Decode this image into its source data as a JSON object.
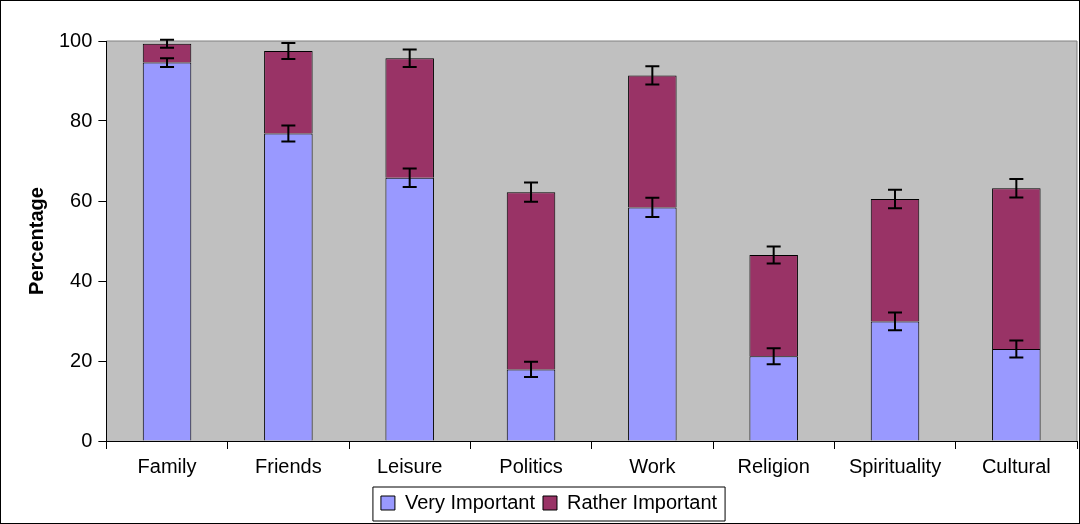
{
  "chart_data": {
    "type": "bar",
    "ylabel": "Percentage",
    "stacked": true,
    "categories": [
      "Family",
      "Friends",
      "Leisure",
      "Politics",
      "Work",
      "Religion",
      "Spirituality",
      "Cultural"
    ],
    "series": [
      {
        "name": "Very Important",
        "color": "#9999ff",
        "values": [
          94.6,
          76.9,
          65.8,
          17.9,
          58.4,
          21.2,
          29.9,
          23.0
        ],
        "errors": [
          1.1,
          2.0,
          2.3,
          1.9,
          2.4,
          2.0,
          2.2,
          2.1
        ]
      },
      {
        "name": "Rather Important",
        "color": "#993366",
        "values": [
          4.7,
          20.6,
          29.9,
          44.3,
          33.0,
          25.3,
          30.6,
          40.2
        ],
        "errors": [
          1.0,
          2.0,
          2.2,
          2.4,
          2.3,
          2.1,
          2.3,
          2.3
        ]
      }
    ],
    "ylim": [
      0,
      100
    ],
    "yticks": [
      0,
      20,
      40,
      60,
      80,
      100
    ],
    "grid": false,
    "legend": "bottom"
  }
}
